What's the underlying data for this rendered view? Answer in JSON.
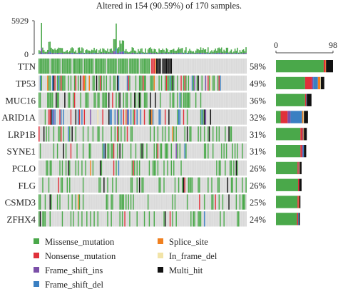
{
  "chart_data": {
    "type": "oncoplot",
    "title": "Altered in 154 (90.59%) of 170 samples.",
    "samples_total": 170,
    "samples_altered": 154,
    "top_bar": {
      "ymax_label": "5929",
      "ymin_label": "0"
    },
    "right_bar": {
      "xmin_label": "0",
      "xmax_label": "98"
    },
    "colors": {
      "Missense_mutation": "#4aa84a",
      "Nonsense_mutation": "#e0303a",
      "Frame_shift_ins": "#7b4fa8",
      "Frame_shift_del": "#3a7fc2",
      "Splice_site": "#f08020",
      "In_frame_del": "#f2e4a8",
      "Multi_hit": "#111111",
      "wildtype": "#d9d9d9"
    },
    "genes": [
      {
        "name": "TTN",
        "pct": "58%",
        "altered": 98,
        "counts": {
          "Missense_mutation": 82,
          "Nonsense_mutation": 3,
          "Frame_shift_ins": 0,
          "Frame_shift_del": 0,
          "Splice_site": 1,
          "In_frame_del": 0,
          "Multi_hit": 12
        }
      },
      {
        "name": "TP53",
        "pct": "49%",
        "altered": 83,
        "counts": {
          "Missense_mutation": 50,
          "Nonsense_mutation": 12,
          "Frame_shift_ins": 2,
          "Frame_shift_del": 8,
          "Splice_site": 4,
          "In_frame_del": 1,
          "Multi_hit": 6
        }
      },
      {
        "name": "MUC16",
        "pct": "36%",
        "altered": 61,
        "counts": {
          "Missense_mutation": 50,
          "Nonsense_mutation": 2,
          "Frame_shift_ins": 0,
          "Frame_shift_del": 1,
          "Splice_site": 0,
          "In_frame_del": 0,
          "Multi_hit": 8
        }
      },
      {
        "name": "ARID1A",
        "pct": "32%",
        "altered": 55,
        "counts": {
          "Missense_mutation": 8,
          "Nonsense_mutation": 12,
          "Frame_shift_ins": 5,
          "Frame_shift_del": 20,
          "Splice_site": 2,
          "In_frame_del": 1,
          "Multi_hit": 7
        }
      },
      {
        "name": "LRP1B",
        "pct": "31%",
        "altered": 53,
        "counts": {
          "Missense_mutation": 42,
          "Nonsense_mutation": 4,
          "Frame_shift_ins": 0,
          "Frame_shift_del": 1,
          "Splice_site": 1,
          "In_frame_del": 0,
          "Multi_hit": 5
        }
      },
      {
        "name": "SYNE1",
        "pct": "31%",
        "altered": 52,
        "counts": {
          "Missense_mutation": 42,
          "Nonsense_mutation": 3,
          "Frame_shift_ins": 1,
          "Frame_shift_del": 2,
          "Splice_site": 0,
          "In_frame_del": 0,
          "Multi_hit": 4
        }
      },
      {
        "name": "PCLO",
        "pct": "26%",
        "altered": 44,
        "counts": {
          "Missense_mutation": 37,
          "Nonsense_mutation": 2,
          "Frame_shift_ins": 0,
          "Frame_shift_del": 1,
          "Splice_site": 1,
          "In_frame_del": 0,
          "Multi_hit": 3
        }
      },
      {
        "name": "FLG",
        "pct": "26%",
        "altered": 44,
        "counts": {
          "Missense_mutation": 38,
          "Nonsense_mutation": 2,
          "Frame_shift_ins": 0,
          "Frame_shift_del": 0,
          "Splice_site": 0,
          "In_frame_del": 0,
          "Multi_hit": 4
        }
      },
      {
        "name": "CSMD3",
        "pct": "25%",
        "altered": 42,
        "counts": {
          "Missense_mutation": 37,
          "Nonsense_mutation": 2,
          "Frame_shift_ins": 0,
          "Frame_shift_del": 0,
          "Splice_site": 1,
          "In_frame_del": 0,
          "Multi_hit": 2
        }
      },
      {
        "name": "ZFHX4",
        "pct": "24%",
        "altered": 41,
        "counts": {
          "Missense_mutation": 36,
          "Nonsense_mutation": 2,
          "Frame_shift_ins": 0,
          "Frame_shift_del": 1,
          "Splice_site": 0,
          "In_frame_del": 0,
          "Multi_hit": 2
        }
      }
    ],
    "legend": [
      "Missense_mutation",
      "Nonsense_mutation",
      "Frame_shift_ins",
      "Frame_shift_del",
      "Splice_site",
      "In_frame_del",
      "Multi_hit"
    ]
  }
}
